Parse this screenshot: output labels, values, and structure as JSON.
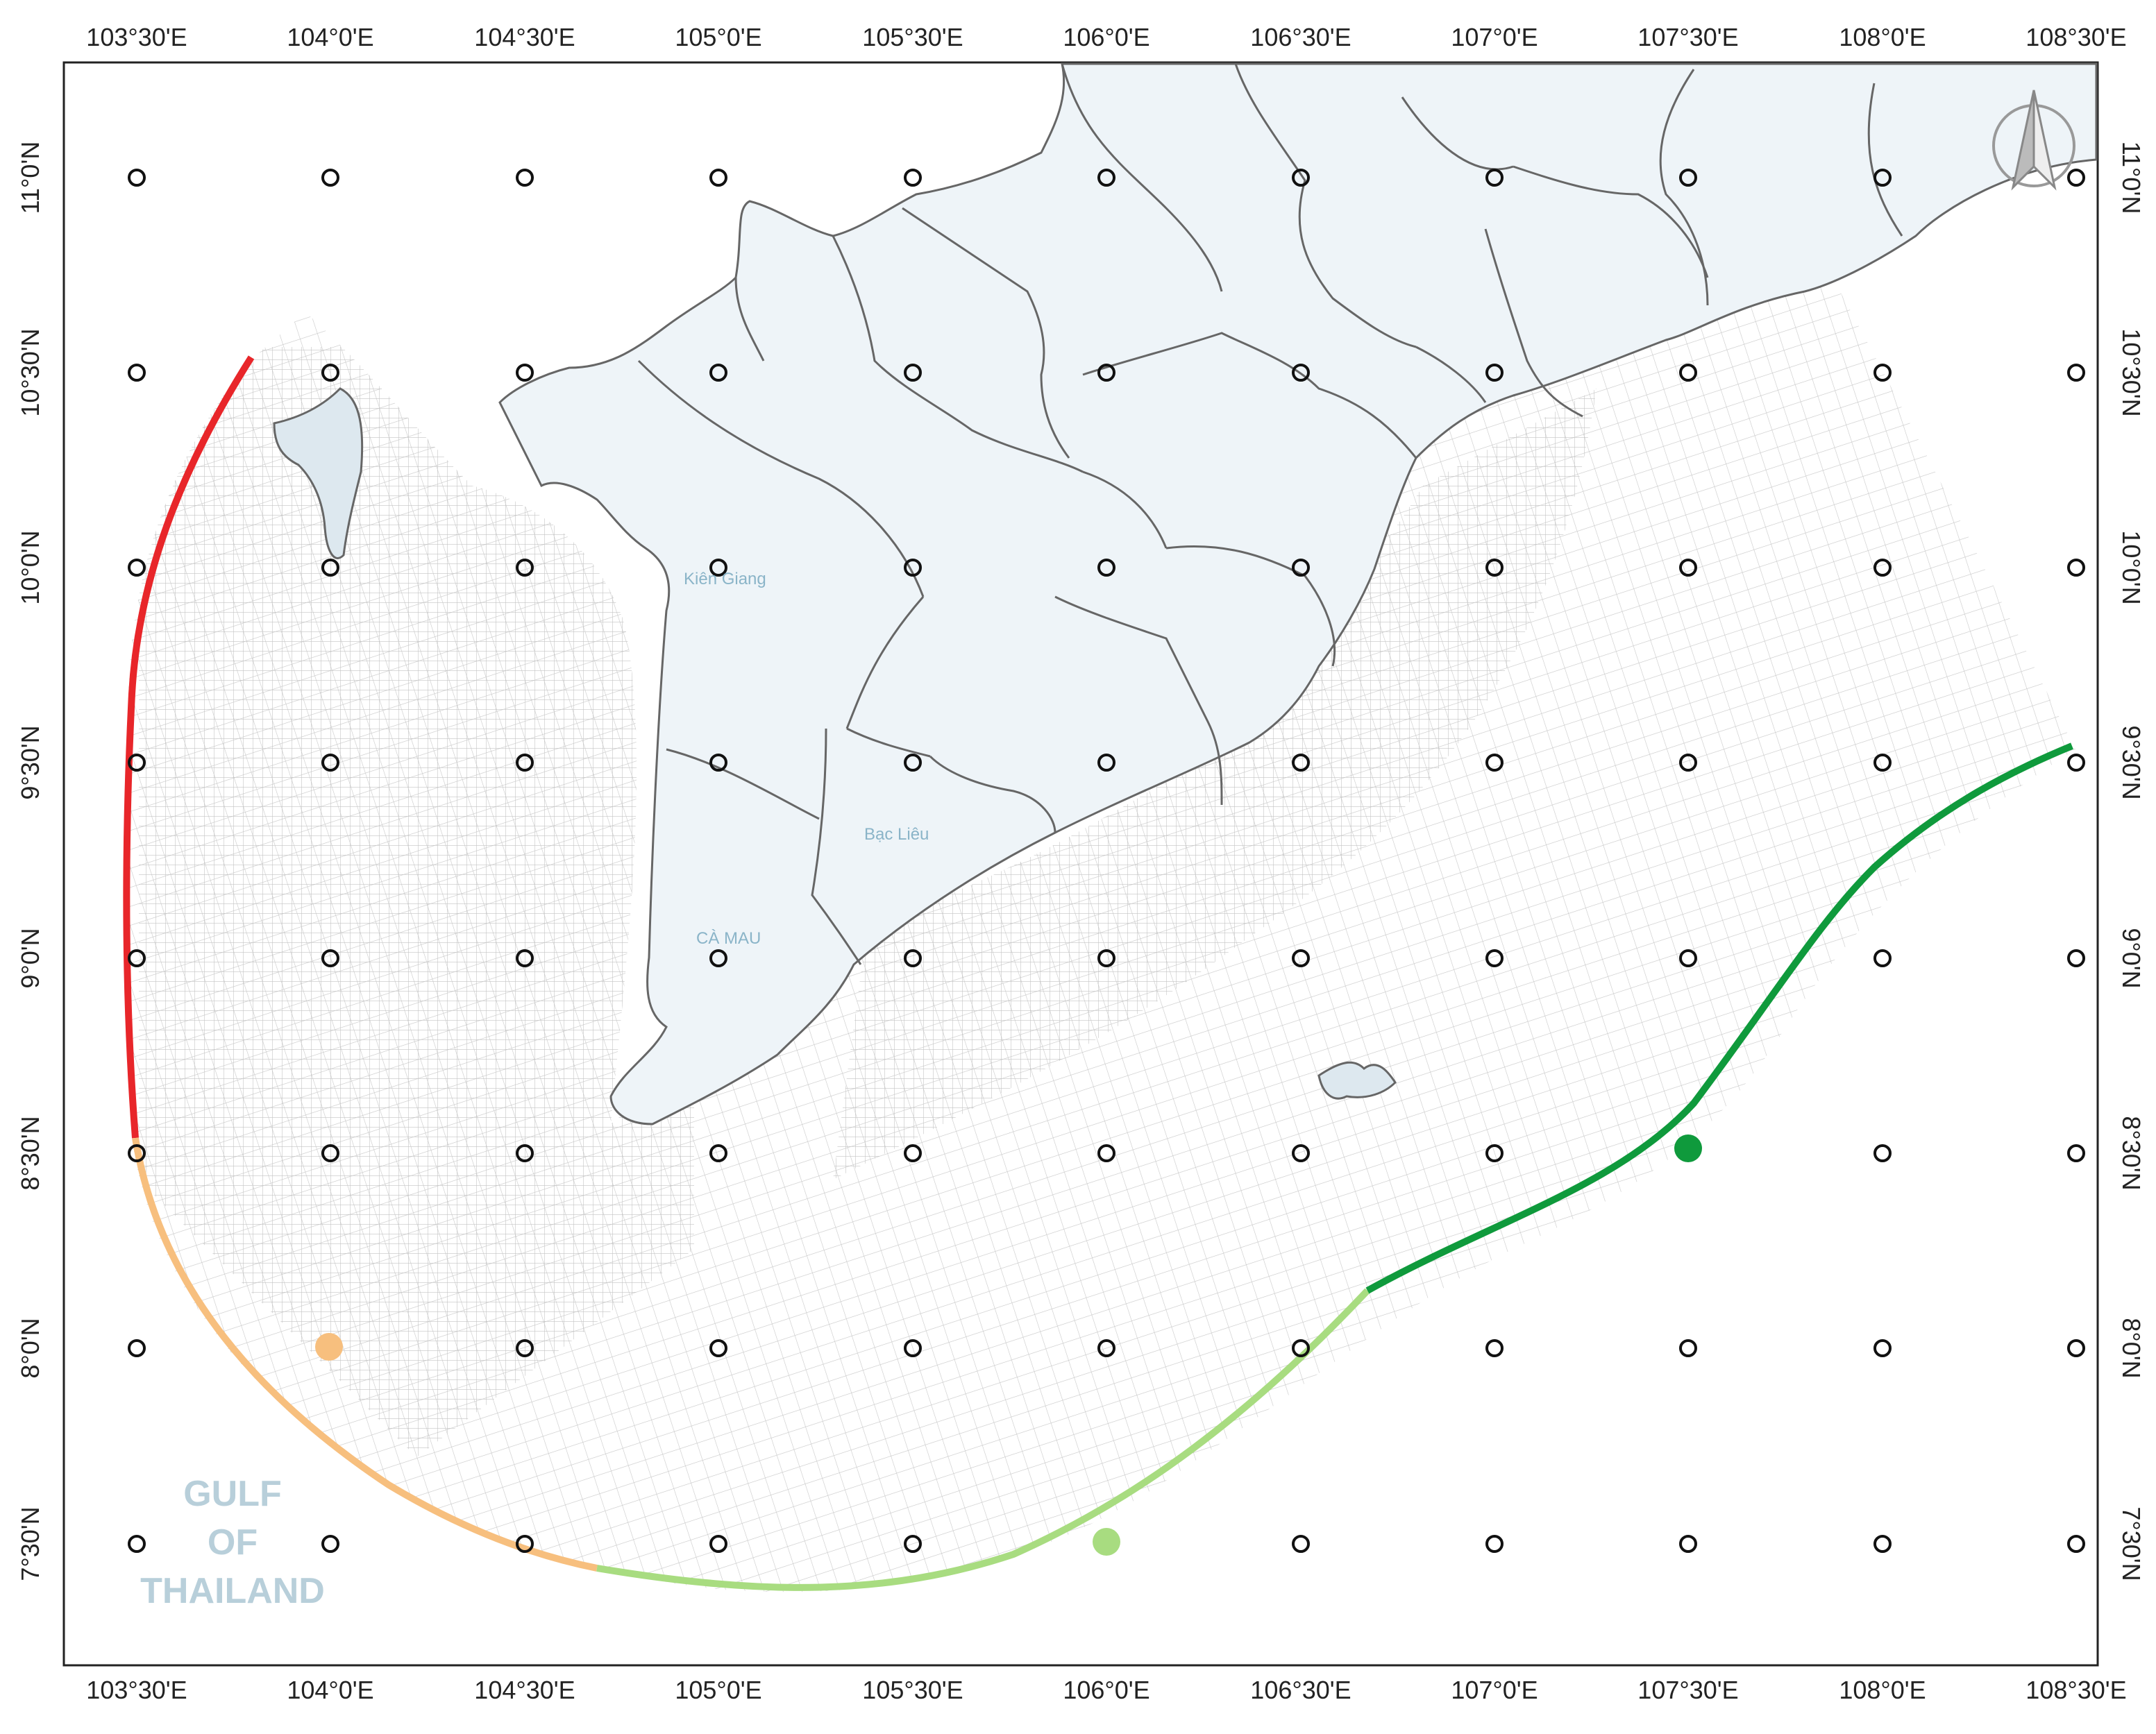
{
  "map": {
    "top_ticks": [
      "103°30'E",
      "104°0'E",
      "104°30'E",
      "105°0'E",
      "105°30'E",
      "106°0'E",
      "106°30'E",
      "107°0'E",
      "107°30'E",
      "108°0'E",
      "108°30'E"
    ],
    "bottom_ticks": [
      "103°30'E",
      "104°0'E",
      "104°30'E",
      "105°0'E",
      "105°30'E",
      "106°0'E",
      "106°30'E",
      "107°0'E",
      "107°30'E",
      "108°0'E",
      "108°30'E"
    ],
    "left_ticks": [
      "11°0'N",
      "10°30'N",
      "10°0'N",
      "9°30'N",
      "9°0'N",
      "8°30'N",
      "8°0'N",
      "7°30'N"
    ],
    "right_ticks": [
      "11°0'N",
      "10°30'N",
      "10°0'N",
      "9°30'N",
      "9°0'N",
      "8°30'N",
      "8°0'N",
      "7°30'N"
    ],
    "place_labels": {
      "kien_giang": "Kiên Giang",
      "bac_lieu": "Bạc Liêu",
      "ca_mau": "CÀ MAU"
    },
    "sea_label": {
      "line1": "GULF",
      "line2": "OF",
      "line3": "THAILAND"
    },
    "colors": {
      "land": "#eef4f8",
      "border": "#666666",
      "mesh": "#c4c4c4",
      "boundary_west": "#e8262a",
      "boundary_southwest": "#f7bf7e",
      "boundary_south": "#a8dc80",
      "boundary_southeast": "#0f9a3c"
    }
  }
}
